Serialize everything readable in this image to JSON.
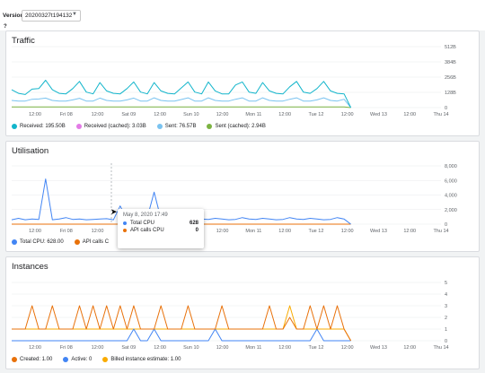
{
  "version": {
    "label": "Version",
    "value": "20200327t194132"
  },
  "colors": {
    "received": "#12b5cb",
    "received_cached": "#e37be6",
    "sent": "#7ac3f0",
    "sent_cached": "#7cb342",
    "total_cpu": "#4285f4",
    "api_cpu": "#e8710a",
    "created": "#e8710a",
    "active": "#4285f4",
    "billed": "#f9ab00"
  },
  "x_ticks": [
    "12:00",
    "Fri 08",
    "12:00",
    "Sat 09",
    "12:00",
    "Sun 10",
    "12:00",
    "Mon 11",
    "12:00",
    "Tue 12",
    "12:00",
    "Wed 13",
    "12:00",
    "Thu 14"
  ],
  "traffic": {
    "title": "Traffic",
    "legend": [
      {
        "label": "Received: 195.50B",
        "color": "#12b5cb"
      },
      {
        "label": "Received (cached): 3.03B",
        "color": "#e37be6"
      },
      {
        "label": "Sent: 76.57B",
        "color": "#7ac3f0"
      },
      {
        "label": "Sent (cached): 2.94B",
        "color": "#7cb342"
      }
    ]
  },
  "utilisation": {
    "title": "Utilisation",
    "legend": [
      {
        "label": "Total CPU: 628.00",
        "color": "#4285f4"
      },
      {
        "label": "API calls C",
        "color": "#e8710a"
      }
    ],
    "tooltip": {
      "date": "May 8, 2020 17:49",
      "rows": [
        {
          "label": "Total CPU",
          "value": "628",
          "color": "#4285f4"
        },
        {
          "label": "API calls CPU",
          "value": "0",
          "color": "#e8710a"
        }
      ]
    }
  },
  "instances": {
    "title": "Instances",
    "legend": [
      {
        "label": "Created: 1.00",
        "color": "#e8710a"
      },
      {
        "label": "Active: 0",
        "color": "#4285f4"
      },
      {
        "label": "Billed instance estimate: 1.00",
        "color": "#f9ab00"
      }
    ]
  },
  "chart_data": [
    {
      "type": "line",
      "title": "Traffic",
      "y_ticks": [
        "512B",
        "384B",
        "256B",
        "128B",
        "0"
      ],
      "ylim": [
        0,
        512
      ],
      "series": [
        {
          "name": "Received",
          "values": [
            150,
            120,
            110,
            155,
            160,
            230,
            150,
            120,
            115,
            160,
            220,
            130,
            115,
            210,
            140,
            120,
            115,
            160,
            215,
            130,
            115,
            210,
            140,
            120,
            115,
            165,
            215,
            130,
            115,
            215,
            140,
            115,
            115,
            190,
            215,
            130,
            120,
            210,
            140,
            120,
            115,
            175,
            220,
            130,
            120,
            160,
            220,
            140,
            120,
            115,
            0
          ]
        },
        {
          "name": "Sent",
          "values": [
            60,
            55,
            55,
            70,
            72,
            80,
            60,
            55,
            55,
            65,
            78,
            55,
            55,
            80,
            60,
            55,
            55,
            65,
            80,
            55,
            55,
            82,
            60,
            55,
            55,
            68,
            82,
            55,
            55,
            82,
            60,
            55,
            55,
            70,
            82,
            55,
            55,
            82,
            60,
            55,
            55,
            70,
            82,
            55,
            55,
            65,
            82,
            60,
            55,
            70,
            0
          ]
        },
        {
          "name": "Received (cached)",
          "values": [
            5,
            5,
            5,
            5,
            5,
            5,
            5,
            5,
            5,
            5,
            5,
            5,
            5,
            5,
            5,
            5,
            5,
            5,
            5,
            5,
            5,
            5,
            5,
            5,
            5,
            5,
            5,
            5,
            5,
            5,
            5,
            5,
            5,
            5,
            5,
            5,
            5,
            5,
            5,
            5,
            5,
            5,
            5,
            5,
            5,
            5,
            5,
            5,
            5,
            5,
            0
          ]
        }
      ]
    },
    {
      "type": "line",
      "title": "Utilisation",
      "y_ticks": [
        "8,000",
        "6,000",
        "4,000",
        "2,000",
        "0"
      ],
      "ylim": [
        0,
        8000
      ],
      "series": [
        {
          "name": "Total CPU",
          "values": [
            600,
            800,
            600,
            700,
            650,
            6200,
            600,
            700,
            900,
            650,
            700,
            600,
            650,
            700,
            750,
            600,
            2500,
            650,
            700,
            600,
            900,
            4400,
            700,
            600,
            650,
            700,
            600,
            900,
            700,
            650,
            800,
            700,
            600,
            650,
            900,
            700,
            650,
            800,
            700,
            600,
            650,
            900,
            700,
            650,
            800,
            700,
            600,
            650,
            900,
            700,
            0
          ]
        },
        {
          "name": "API calls CPU",
          "values": [
            0,
            0,
            0,
            0,
            0,
            0,
            0,
            0,
            0,
            0,
            0,
            0,
            0,
            0,
            0,
            0,
            0,
            0,
            0,
            0,
            0,
            0,
            0,
            0,
            0,
            0,
            0,
            0,
            0,
            0,
            0,
            0,
            0,
            0,
            0,
            0,
            0,
            0,
            0,
            0,
            0,
            0,
            0,
            0,
            0,
            0,
            0,
            0,
            0,
            0,
            0
          ]
        }
      ]
    },
    {
      "type": "line",
      "title": "Instances",
      "y_ticks": [
        "5",
        "4",
        "3",
        "2",
        "1",
        "0"
      ],
      "ylim": [
        0,
        5
      ],
      "series": [
        {
          "name": "Created",
          "values": [
            1,
            1,
            1,
            3,
            1,
            1,
            3,
            1,
            1,
            1,
            3,
            1,
            3,
            1,
            3,
            1,
            3,
            1,
            3,
            1,
            1,
            1,
            3,
            1,
            1,
            1,
            3,
            1,
            1,
            1,
            1,
            3,
            1,
            1,
            1,
            1,
            1,
            1,
            3,
            1,
            1,
            2,
            1,
            1,
            3,
            1,
            3,
            1,
            3,
            1,
            0
          ]
        },
        {
          "name": "Active",
          "values": [
            0,
            0,
            0,
            0,
            0,
            0,
            0,
            0,
            0,
            0,
            0,
            0,
            0,
            0,
            0,
            0,
            0,
            0,
            1,
            0,
            0,
            1,
            0,
            0,
            0,
            0,
            0,
            0,
            0,
            0,
            1,
            0,
            0,
            0,
            0,
            0,
            0,
            0,
            0,
            0,
            0,
            0,
            0,
            0,
            0,
            1,
            0,
            0,
            0,
            0,
            0
          ]
        },
        {
          "name": "Billed instance estimate",
          "values": [
            1,
            1,
            1,
            1,
            1,
            1,
            1,
            1,
            1,
            1,
            1,
            1,
            1,
            1,
            1,
            1,
            1,
            1,
            1,
            1,
            1,
            1,
            1,
            1,
            1,
            1,
            1,
            1,
            1,
            1,
            1,
            1,
            1,
            1,
            1,
            1,
            1,
            1,
            1,
            1,
            1,
            3,
            1,
            1,
            1,
            1,
            1,
            1,
            1,
            1,
            0
          ]
        }
      ]
    }
  ]
}
